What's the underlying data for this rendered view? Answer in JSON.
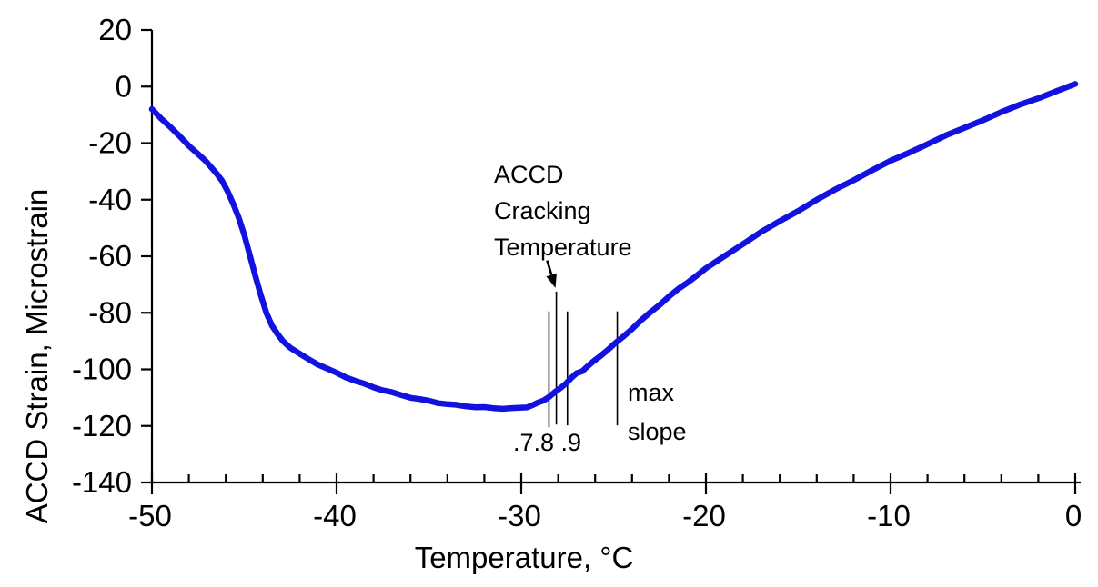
{
  "chart_data": {
    "type": "line",
    "title": "",
    "xlabel": "Temperature, °C",
    "ylabel": "ACCD Strain, Microstrain",
    "xlim": [
      -50,
      0
    ],
    "ylim": [
      -140,
      20
    ],
    "x_major_ticks": [
      -50,
      -40,
      -30,
      -20,
      -10,
      0
    ],
    "x_minor_tick_step": 2,
    "y_major_ticks": [
      20,
      0,
      -20,
      -40,
      -60,
      -80,
      -100,
      -120,
      -140
    ],
    "grid": false,
    "legend_position": "none",
    "series": [
      {
        "name": "ACCD strain vs temperature",
        "color": "#1212E0",
        "points": [
          [
            -50.0,
            -8.0
          ],
          [
            -49.5,
            -11.2
          ],
          [
            -49.0,
            -14.4
          ],
          [
            -48.5,
            -17.6
          ],
          [
            -48.0,
            -20.8
          ],
          [
            -47.5,
            -23.9
          ],
          [
            -47.1,
            -26.4
          ],
          [
            -46.8,
            -28.4
          ],
          [
            -46.5,
            -30.7
          ],
          [
            -46.2,
            -33.5
          ],
          [
            -45.9,
            -37.0
          ],
          [
            -45.6,
            -41.3
          ],
          [
            -45.3,
            -46.5
          ],
          [
            -45.0,
            -52.5
          ],
          [
            -44.7,
            -59.5
          ],
          [
            -44.4,
            -67.0
          ],
          [
            -44.1,
            -74.0
          ],
          [
            -43.8,
            -80.0
          ],
          [
            -43.5,
            -84.5
          ],
          [
            -43.2,
            -87.6
          ],
          [
            -42.9,
            -90.0
          ],
          [
            -42.5,
            -92.3
          ],
          [
            -42.0,
            -94.6
          ],
          [
            -41.5,
            -96.5
          ],
          [
            -41.0,
            -98.2
          ],
          [
            -40.5,
            -99.8
          ],
          [
            -40.0,
            -101.3
          ],
          [
            -39.5,
            -102.7
          ],
          [
            -39.0,
            -104.0
          ],
          [
            -38.5,
            -105.2
          ],
          [
            -38.0,
            -106.3
          ],
          [
            -37.5,
            -107.3
          ],
          [
            -37.0,
            -108.2
          ],
          [
            -36.5,
            -109.1
          ],
          [
            -36.0,
            -109.9
          ],
          [
            -35.5,
            -110.6
          ],
          [
            -35.0,
            -111.2
          ],
          [
            -34.5,
            -111.8
          ],
          [
            -34.0,
            -112.3
          ],
          [
            -33.5,
            -112.7
          ],
          [
            -33.0,
            -113.0
          ],
          [
            -32.5,
            -113.3
          ],
          [
            -32.0,
            -113.5
          ],
          [
            -31.5,
            -113.7
          ],
          [
            -31.0,
            -113.8
          ],
          [
            -30.5,
            -113.8
          ],
          [
            -30.0,
            -113.6
          ],
          [
            -29.7,
            -113.3
          ],
          [
            -29.4,
            -112.7
          ],
          [
            -29.1,
            -111.9
          ],
          [
            -28.8,
            -110.9
          ],
          [
            -28.5,
            -109.7
          ],
          [
            -28.2,
            -108.3
          ],
          [
            -27.9,
            -106.7
          ],
          [
            -27.6,
            -105.0
          ],
          [
            -27.3,
            -103.2
          ],
          [
            -27.0,
            -101.4
          ],
          [
            -26.7,
            -100.5
          ],
          [
            -26.5,
            -99.5
          ],
          [
            -26.1,
            -97.3
          ],
          [
            -25.7,
            -95.1
          ],
          [
            -25.3,
            -93.0
          ],
          [
            -24.9,
            -90.8
          ],
          [
            -24.5,
            -88.5
          ],
          [
            -24.0,
            -85.6
          ],
          [
            -23.5,
            -82.7
          ],
          [
            -23.0,
            -79.8
          ],
          [
            -22.5,
            -77.0
          ],
          [
            -22.0,
            -74.3
          ],
          [
            -21.5,
            -71.7
          ],
          [
            -21.0,
            -69.2
          ],
          [
            -20.5,
            -66.8
          ],
          [
            -20.0,
            -64.4
          ],
          [
            -19.0,
            -59.9
          ],
          [
            -18.0,
            -55.6
          ],
          [
            -17.0,
            -51.5
          ],
          [
            -16.0,
            -47.6
          ],
          [
            -15.0,
            -43.8
          ],
          [
            -14.0,
            -40.1
          ],
          [
            -13.0,
            -36.5
          ],
          [
            -12.0,
            -33.0
          ],
          [
            -11.0,
            -29.6
          ],
          [
            -10.0,
            -26.4
          ],
          [
            -9.0,
            -23.3
          ],
          [
            -8.0,
            -20.3
          ],
          [
            -7.0,
            -17.4
          ],
          [
            -6.0,
            -14.6
          ],
          [
            -5.0,
            -11.8
          ],
          [
            -4.0,
            -9.1
          ],
          [
            -3.0,
            -6.5
          ],
          [
            -2.0,
            -4.0
          ],
          [
            -1.0,
            -1.6
          ],
          [
            0.0,
            0.9
          ]
        ]
      }
    ],
    "annotations": {
      "cracking_label": "ACCD\nCracking\nTemperature",
      "decimals_label": ".7.8 .9",
      "max_slope_label": "max\nslope",
      "arrow": {
        "from": [
          -28.6,
          -61.5
        ],
        "to": [
          -28.15,
          -71.2
        ]
      },
      "threshold_lines": [
        {
          "label": ".7",
          "x": -28.5,
          "y1": -79.5,
          "y2": -120.5
        },
        {
          "label": ".8",
          "x": -28.1,
          "y1": -72.5,
          "y2": -119.5
        },
        {
          "label": ".9",
          "x": -27.5,
          "y1": -79.5,
          "y2": -119.8
        },
        {
          "label": "max slope",
          "x": -24.8,
          "y1": -79.5,
          "y2": -119.8
        }
      ]
    }
  }
}
